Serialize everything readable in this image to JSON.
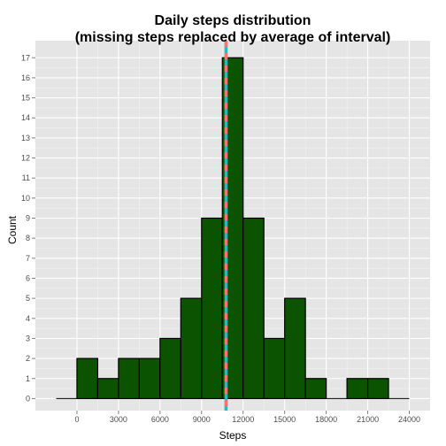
{
  "chart_data": {
    "type": "bar",
    "title_line1": "Daily steps distribution",
    "title_line2": "(missing steps replaced by average of interval)",
    "xlabel": "Steps",
    "ylabel": "Count",
    "bin_width": 1500,
    "x_bins_start": [
      0,
      1500,
      3000,
      4500,
      6000,
      7500,
      9000,
      10500,
      12000,
      13500,
      15000,
      16500,
      18000,
      19500,
      21000
    ],
    "values": [
      2,
      1,
      2,
      2,
      3,
      5,
      9,
      17,
      9,
      3,
      5,
      1,
      0,
      1,
      1
    ],
    "xlim": [
      -3000,
      25500
    ],
    "ylim": [
      -0.6,
      17.85
    ],
    "x_ticks": [
      0,
      3000,
      6000,
      9000,
      12000,
      15000,
      18000,
      21000,
      24000
    ],
    "x_tick_labels": [
      "0",
      "3000",
      "6000",
      "9000",
      "12000",
      "15000",
      "18000",
      "21000",
      "24000"
    ],
    "y_ticks": [
      0,
      1,
      2,
      3,
      4,
      5,
      6,
      7,
      8,
      9,
      10,
      11,
      12,
      13,
      14,
      15,
      16,
      17
    ],
    "y_tick_labels": [
      "0",
      "1",
      "2",
      "3",
      "4",
      "5",
      "6",
      "7",
      "8",
      "9",
      "10",
      "11",
      "12",
      "13",
      "14",
      "15",
      "16",
      "17"
    ],
    "baseline_range": [
      -1500,
      24000
    ],
    "mean_line": 10766,
    "median_line": 10766,
    "colors": {
      "panel_bg": "#e5e5e5",
      "grid_major": "#ffffff",
      "bar_fill": "#0c5300",
      "bar_stroke": "#000000",
      "mean_line": "#2fb7c0",
      "median_line": "#f8766d"
    },
    "grid": true
  }
}
